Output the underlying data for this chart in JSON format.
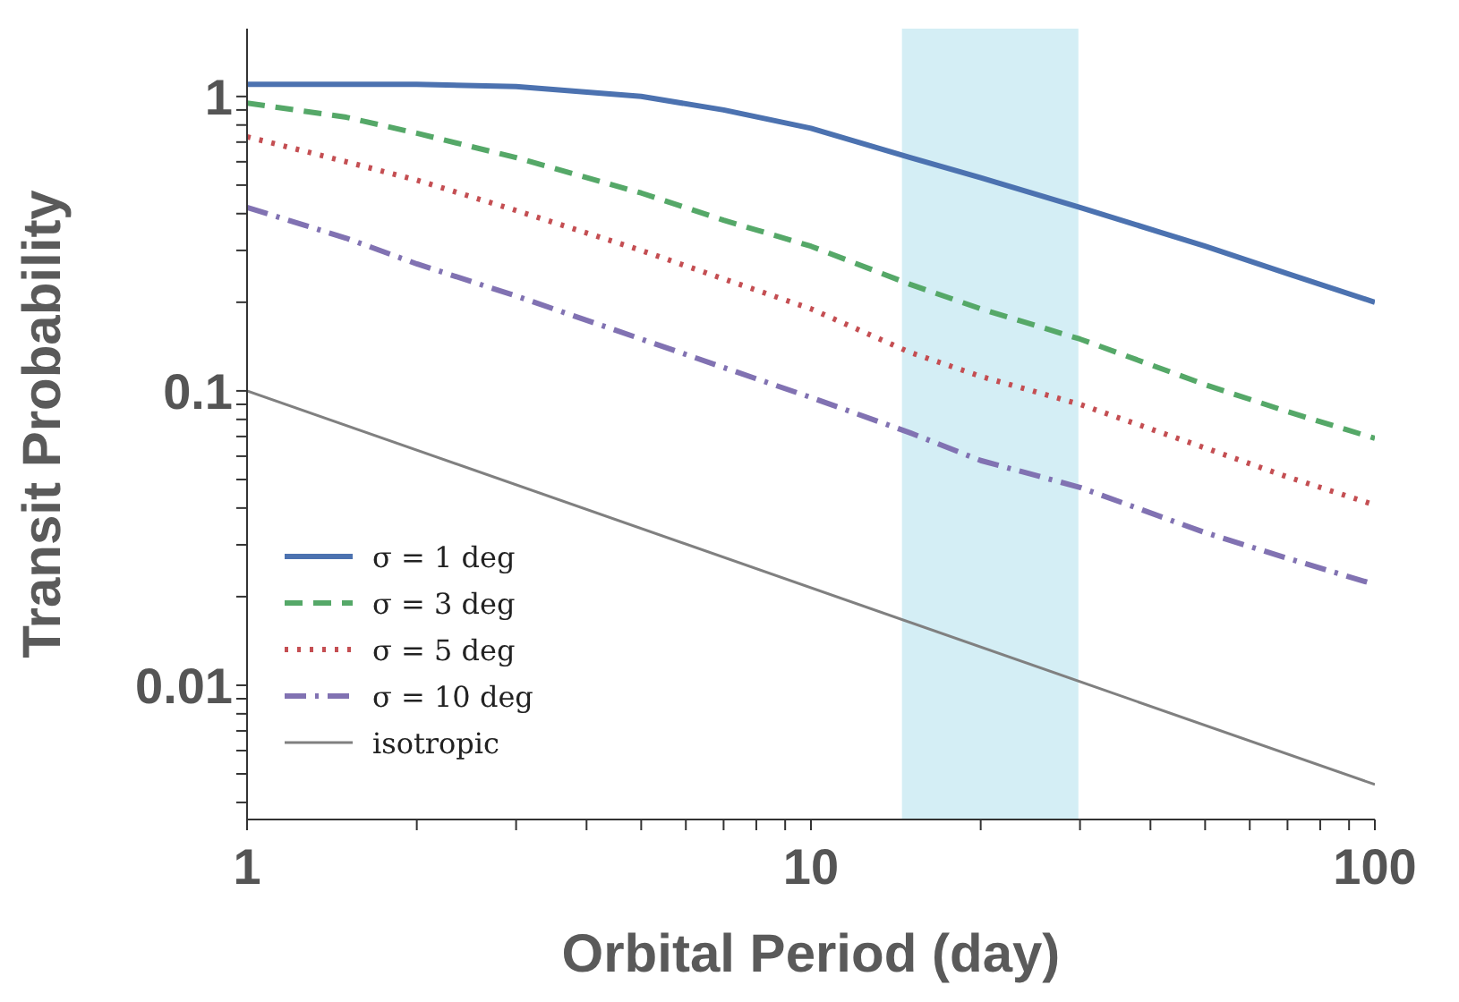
{
  "chart_data": {
    "type": "line",
    "xlabel": "Orbital Period (day)",
    "ylabel": "Transit Probability",
    "log": "xy",
    "legend": "bottom left",
    "marker": "none",
    "xlim": [
      1,
      100
    ],
    "xticks": [
      1,
      {
        "value": 2,
        "label": null
      },
      {
        "value": 3,
        "label": null
      },
      {
        "value": 4,
        "label": null
      },
      {
        "value": 5,
        "label": null
      },
      {
        "value": 6,
        "label": null
      },
      {
        "value": 7,
        "label": null
      },
      {
        "value": 8,
        "label": null
      },
      {
        "value": 9,
        "label": null
      },
      10,
      {
        "value": 20,
        "label": null
      },
      {
        "value": 30,
        "label": null
      },
      {
        "value": 40,
        "label": null
      },
      {
        "value": 50,
        "label": null
      },
      {
        "value": 60,
        "label": null
      },
      {
        "value": 70,
        "label": null
      },
      {
        "value": 80,
        "label": null
      },
      {
        "value": 90,
        "label": null
      },
      100
    ],
    "ylim": [
      0.0035,
      1.7
    ],
    "yticks": [
      {
        "value": 0.004,
        "label": null
      },
      {
        "value": 0.005,
        "label": null
      },
      {
        "value": 0.006,
        "label": null
      },
      {
        "value": 0.007,
        "label": null
      },
      {
        "value": 0.008,
        "label": null
      },
      {
        "value": 0.009,
        "label": null
      },
      0.01,
      {
        "value": 0.02,
        "label": null
      },
      {
        "value": 0.03,
        "label": null
      },
      {
        "value": 0.04,
        "label": null
      },
      {
        "value": 0.05,
        "label": null
      },
      {
        "value": 0.06,
        "label": null
      },
      {
        "value": 0.07,
        "label": null
      },
      {
        "value": 0.08,
        "label": null
      },
      {
        "value": 0.09,
        "label": null
      },
      0.1,
      {
        "value": 0.2,
        "label": null
      },
      {
        "value": 0.3,
        "label": null
      },
      {
        "value": 0.4,
        "label": null
      },
      {
        "value": 0.5,
        "label": null
      },
      {
        "value": 0.6,
        "label": null
      },
      {
        "value": 0.7,
        "label": null
      },
      {
        "value": 0.8,
        "label": null
      },
      {
        "value": 0.9,
        "label": null
      },
      1
    ],
    "bands": [
      {
        "axis": "x",
        "from": 14.5,
        "to": 29.8,
        "color": "#d4eef5"
      }
    ],
    "series": [
      {
        "name": "σ = 1 deg",
        "color": "#4c72b0",
        "line_style": "solid",
        "x": [
          1,
          1.5,
          2,
          3,
          5,
          7,
          10,
          15,
          20,
          30,
          50,
          70,
          100
        ],
        "values": [
          1.1,
          1.1,
          1.1,
          1.08,
          1.0,
          0.9,
          0.78,
          0.62,
          0.53,
          0.42,
          0.31,
          0.25,
          0.2
        ]
      },
      {
        "name": "σ = 3 deg",
        "color": "#55a868",
        "line_style": "dashed",
        "x": [
          1,
          1.5,
          2,
          3,
          5,
          7,
          10,
          15,
          20,
          30,
          50,
          70,
          100
        ],
        "values": [
          0.95,
          0.85,
          0.75,
          0.62,
          0.47,
          0.38,
          0.31,
          0.23,
          0.19,
          0.15,
          0.105,
          0.085,
          0.069
        ]
      },
      {
        "name": "σ = 5 deg",
        "color": "#c44e52",
        "line_style": "dotted",
        "x": [
          1,
          1.5,
          2,
          3,
          5,
          7,
          10,
          15,
          20,
          30,
          50,
          70,
          100
        ],
        "values": [
          0.73,
          0.6,
          0.52,
          0.41,
          0.3,
          0.24,
          0.19,
          0.135,
          0.112,
          0.09,
          0.064,
          0.051,
          0.041
        ]
      },
      {
        "name": "σ = 10 deg",
        "color": "#8172b2",
        "line_style": "dashdot",
        "x": [
          1,
          1.5,
          2,
          3,
          5,
          7,
          10,
          15,
          20,
          30,
          50,
          70,
          100
        ],
        "values": [
          0.42,
          0.33,
          0.27,
          0.21,
          0.15,
          0.12,
          0.095,
          0.072,
          0.058,
          0.047,
          0.033,
          0.027,
          0.022
        ]
      },
      {
        "name": "isotropic",
        "color": "#808080",
        "line_style": "solid",
        "x": [
          1,
          100
        ],
        "values": [
          0.1,
          0.0046
        ]
      }
    ]
  }
}
